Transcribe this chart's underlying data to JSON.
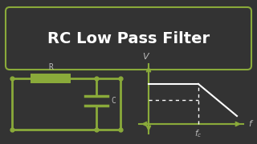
{
  "bg_color": "#333333",
  "title_text": "RC Low Pass Filter",
  "title_box_edge": "#8aaa3a",
  "title_text_color": "#ffffff",
  "circuit_color": "#8aaa3a",
  "label_color": "#bbbbbb",
  "white_color": "#ffffff",
  "r_label": "R",
  "c_label": "C",
  "v_label": "V",
  "f_label": "f",
  "fc_label": "f_c"
}
